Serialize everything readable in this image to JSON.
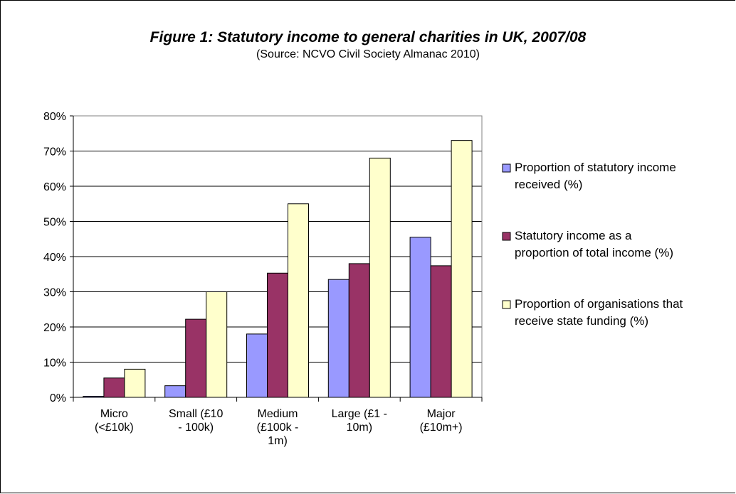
{
  "chart_data": {
    "type": "bar",
    "title": "Figure 1: Statutory income to general charities in UK, 2007/08",
    "subtitle": "(Source: NCVO Civil Society Almanac 2010)",
    "categories": [
      [
        "Micro",
        "(<£10k)"
      ],
      [
        "Small (£10",
        "- 100k)"
      ],
      [
        "Medium",
        "(£100k -",
        "1m)"
      ],
      [
        "Large (£1 -",
        "10m)"
      ],
      [
        "Major",
        "(£10m+)"
      ]
    ],
    "series": [
      {
        "name": "Proportion of statutory income received (%)",
        "legend_lines": [
          "Proportion of statutory income",
          "received (%)"
        ],
        "color": "#9999ff",
        "values": [
          0.3,
          3.3,
          18,
          33.5,
          45.5
        ]
      },
      {
        "name": "Statutory income as a proportion of total income (%)",
        "legend_lines": [
          "Statutory income as a",
          "proportion of total income (%)"
        ],
        "color": "#993366",
        "values": [
          5.5,
          22.2,
          35.3,
          38,
          37.4
        ]
      },
      {
        "name": "Proportion of organisations that receive state funding (%)",
        "legend_lines": [
          "Proportion of organisations that",
          "receive state funding (%)"
        ],
        "color": "#ffffcc",
        "values": [
          8,
          30,
          55,
          68,
          73
        ]
      }
    ],
    "yticks": [
      "0%",
      "10%",
      "20%",
      "30%",
      "40%",
      "50%",
      "60%",
      "70%",
      "80%"
    ],
    "ylim": [
      0,
      80
    ],
    "grid": true,
    "legend_position": "right"
  }
}
